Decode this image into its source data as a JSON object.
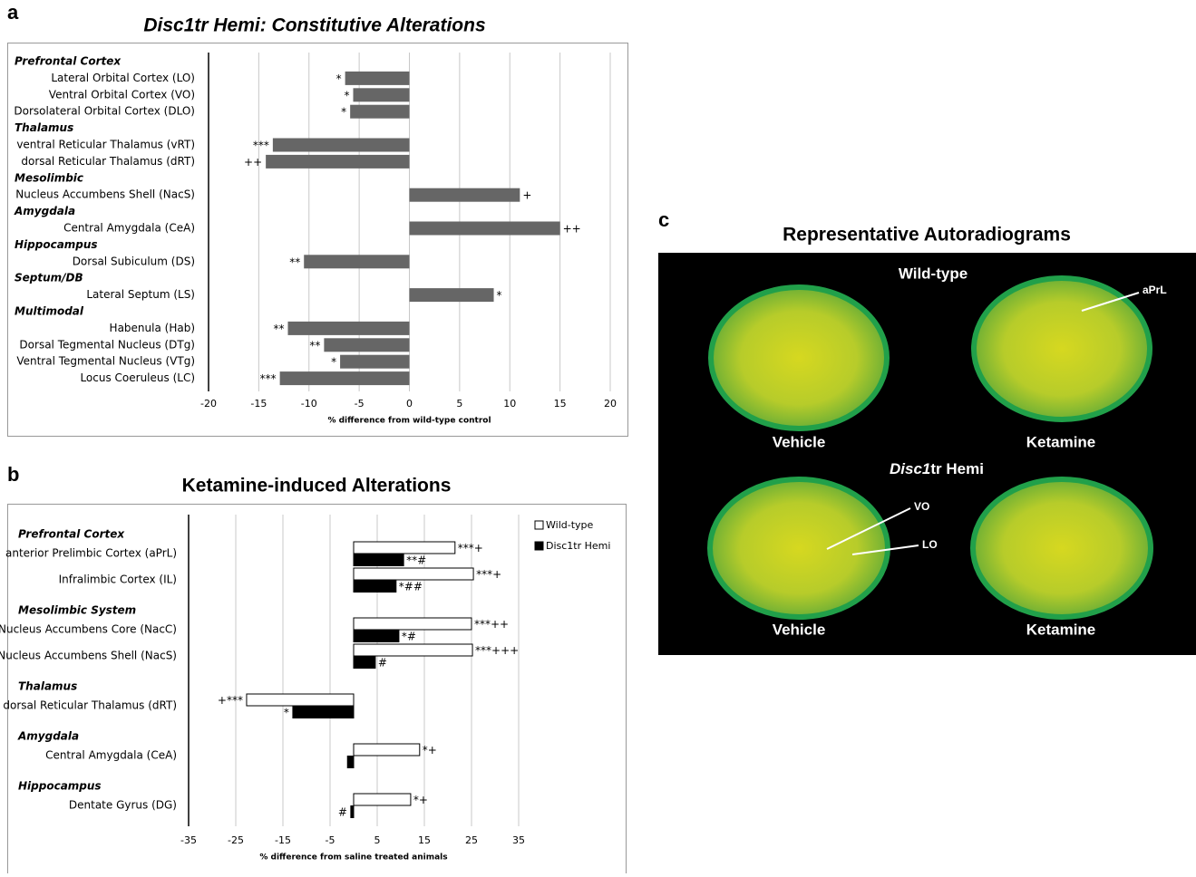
{
  "panel_labels": [
    "a",
    "b",
    "c"
  ],
  "chart_data": [
    {
      "type": "bar",
      "orientation": "horizontal",
      "title": "Disc1tr Hemi: Constitutive Alterations",
      "x_label": "% difference from wild-type control",
      "groups": [
        {
          "name": "Prefrontal Cortex",
          "categories": [
            "Lateral Orbital Cortex (LO)",
            "Ventral Orbital Cortex (VO)",
            "Dorsolateral Orbital Cortex (DLO)"
          ]
        },
        {
          "name": "Thalamus",
          "categories": [
            "ventral Reticular Thalamus (vRT)",
            "dorsal Reticular Thalamus (dRT)"
          ]
        },
        {
          "name": "Mesolimbic",
          "categories": [
            "Nucleus Accumbens Shell (NacS)"
          ]
        },
        {
          "name": "Amygdala",
          "categories": [
            "Central Amygdala (CeA)"
          ]
        },
        {
          "name": "Hippocampus",
          "categories": [
            "Dorsal Subiculum (DS)"
          ]
        },
        {
          "name": "Septum/DB",
          "categories": [
            "Lateral Septum (LS)"
          ]
        },
        {
          "name": "Multimodal",
          "categories": [
            "Habenula (Hab)",
            "Dorsal Tegmental Nucleus (DTg)",
            "Ventral Tegmental Nucleus (VTg)",
            "Locus Coeruleus (LC)"
          ]
        }
      ],
      "values": [
        -6.4,
        -5.6,
        -5.9,
        -13.6,
        -14.3,
        11.0,
        15.0,
        -10.5,
        8.4,
        -12.1,
        -8.5,
        -6.9,
        -12.9
      ],
      "annotations": [
        "*",
        "*",
        "*",
        "***",
        "++",
        "+",
        "++",
        "**",
        "*",
        "**",
        "**",
        "*",
        "***"
      ],
      "color": "#666666",
      "xlim": [
        -20,
        20
      ],
      "xticks": [
        -20,
        -15,
        -10,
        -5,
        0,
        5,
        10,
        15,
        20
      ],
      "grid": true
    },
    {
      "type": "bar",
      "orientation": "horizontal",
      "title": "Ketamine-induced Alterations",
      "x_label": "% difference from saline treated animals",
      "groups": [
        {
          "name": "Prefrontal Cortex",
          "categories": [
            "anterior Prelimbic Cortex (aPrL)",
            "Infralimbic Cortex (IL)"
          ]
        },
        {
          "name": "Mesolimbic System",
          "categories": [
            "Nucleus Accumbens Core (NacC)",
            "Nucleus Accumbens Shell (NacS)"
          ]
        },
        {
          "name": "Thalamus",
          "categories": [
            "dorsal Reticular Thalamus (dRT)"
          ]
        },
        {
          "name": "Amygdala",
          "categories": [
            "Central Amygdala (CeA)"
          ]
        },
        {
          "name": "Hippocampus",
          "categories": [
            "Dentate Gyrus (DG)"
          ]
        }
      ],
      "series": [
        {
          "name": "Wild-type",
          "color": "#ffffff",
          "values": [
            21.5,
            25.4,
            25.0,
            25.2,
            -22.7,
            14.0,
            12.1
          ],
          "annotations": [
            "***+",
            "***+",
            "***++",
            "***+++",
            "+***",
            "*+",
            "*+"
          ]
        },
        {
          "name": "Disc1tr Hemi",
          "color": "#000000",
          "values": [
            10.6,
            9.0,
            9.6,
            4.6,
            -12.9,
            -1.3,
            -0.6
          ],
          "annotations": [
            "**#",
            "*##",
            "*#",
            "#",
            "*",
            null,
            "#"
          ]
        }
      ],
      "legend": "top-right",
      "xlim": [
        -35,
        35
      ],
      "xticks": [
        -35,
        -25,
        -15,
        -5,
        5,
        15,
        25,
        35
      ],
      "grid": true
    }
  ],
  "panel_c": {
    "title": "Representative Autoradiograms",
    "row1_label": "Wild-type",
    "row2_label": {
      "italic": "Disc1",
      "rest": "tr Hemi"
    },
    "columns": [
      "Vehicle",
      "Ketamine",
      "Vehicle",
      "Ketamine"
    ],
    "annotations": [
      "aPrL",
      "VO",
      "LO"
    ]
  }
}
